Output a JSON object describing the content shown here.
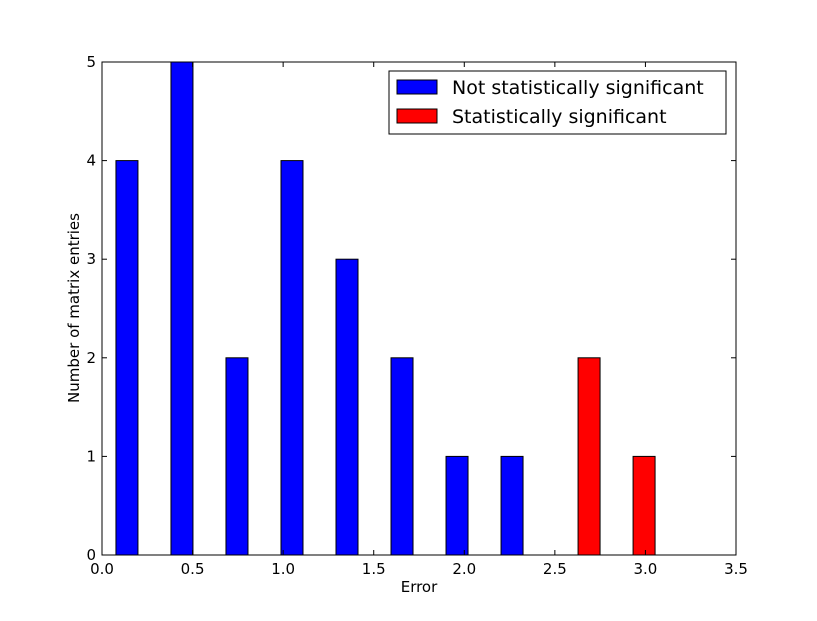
{
  "chart_data": {
    "type": "bar",
    "title": "",
    "xlabel": "Error",
    "ylabel": "Number of matrix entries",
    "xlim": [
      0.0,
      3.5
    ],
    "ylim": [
      0,
      5
    ],
    "xticks": [
      "0.0",
      "0.5",
      "1.0",
      "1.5",
      "2.0",
      "2.5",
      "3.0",
      "3.5"
    ],
    "yticks": [
      "0",
      "1",
      "2",
      "3",
      "4",
      "5"
    ],
    "bin_start": 0.077,
    "bin_width": 0.3037,
    "grid": false,
    "legend_placement": "top-right",
    "series": [
      {
        "name": "Not statistically significant",
        "color": "#0000ff",
        "values": [
          4,
          5,
          2,
          4,
          3,
          2,
          1,
          1,
          0,
          0
        ]
      },
      {
        "name": "Statistically significant",
        "color": "#ff0000",
        "values": [
          0,
          0,
          0,
          0,
          0,
          0,
          0,
          0,
          2,
          1
        ]
      }
    ]
  }
}
